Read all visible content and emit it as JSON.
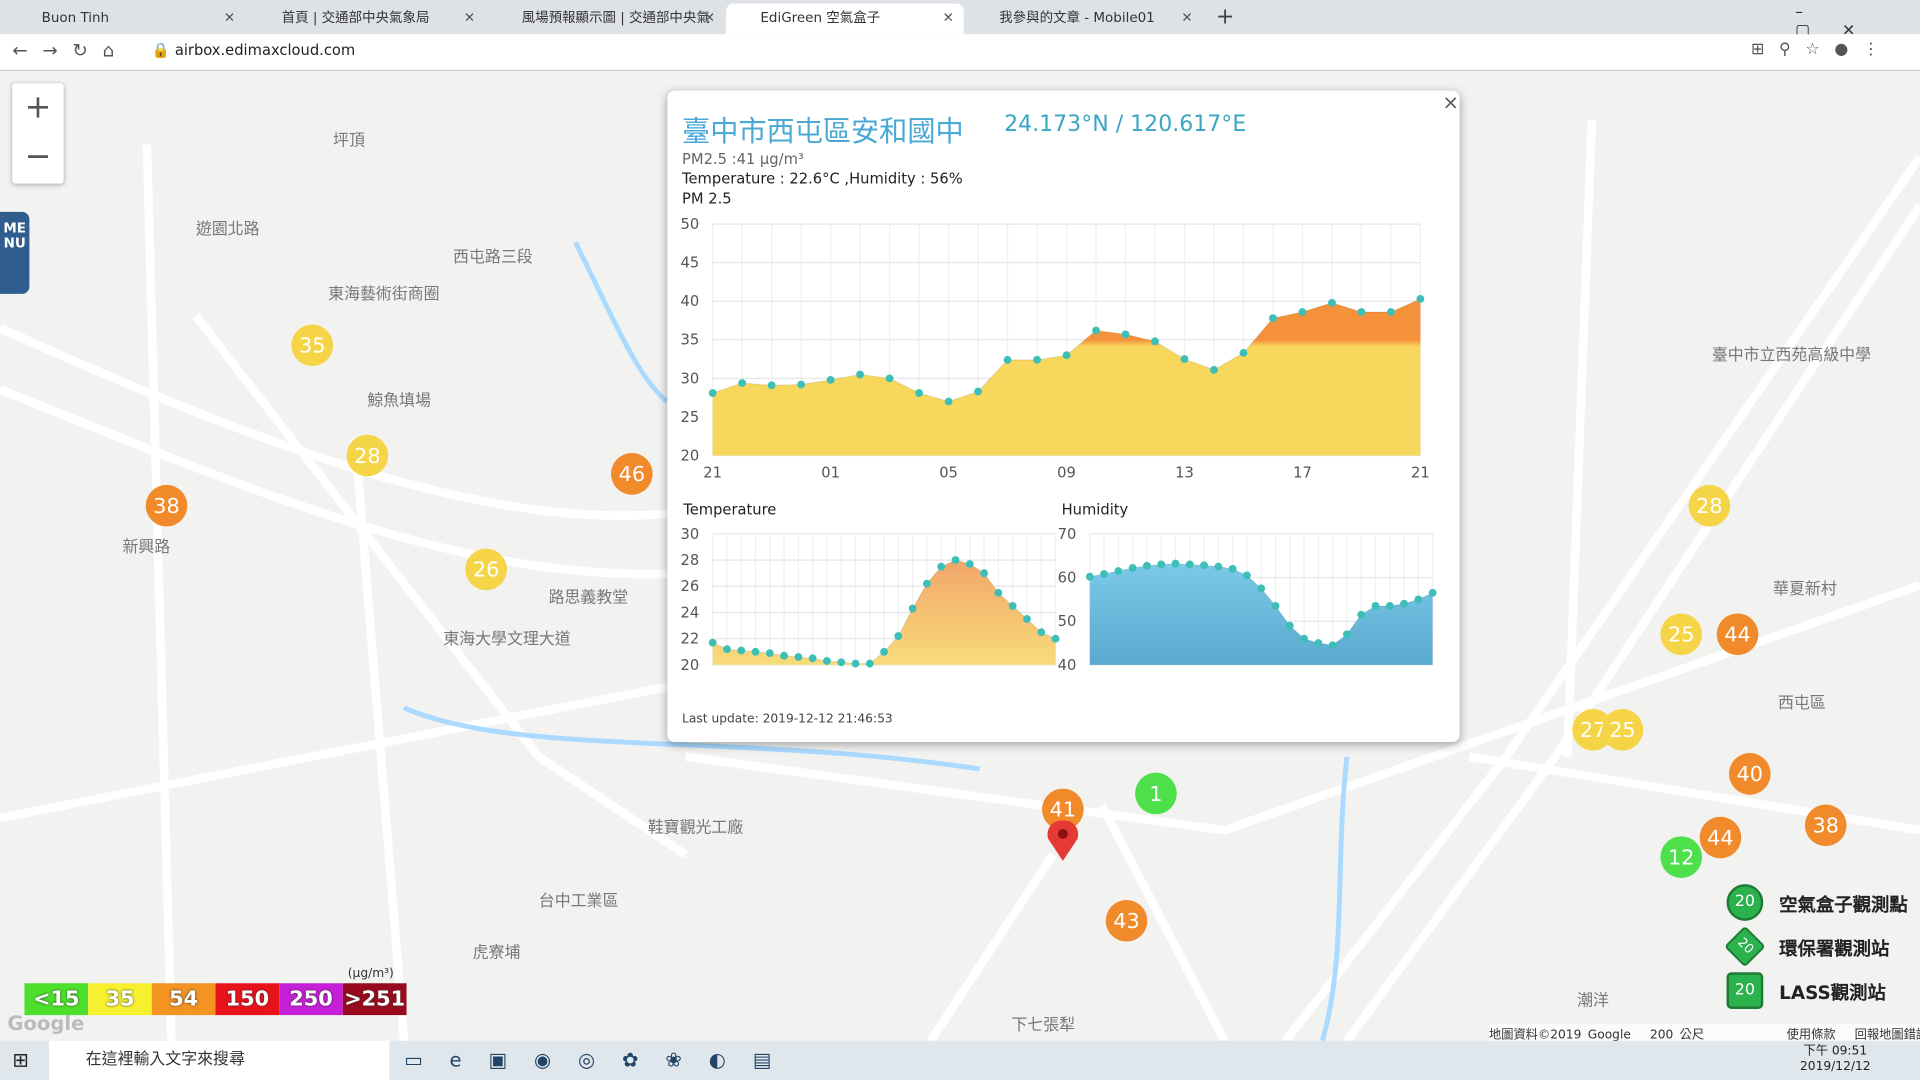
{
  "browser": {
    "tabs": [
      "Buon Tinh",
      "首頁 | 交通部中央氣象局",
      "風場預報顯示圖 | 交通部中央氣",
      "EdiGreen 空氣盒子",
      "我參與的文章 - Mobile01"
    ],
    "url": "airbox.edimaxcloud.com"
  },
  "map": {
    "menu": "MENU",
    "labels": [
      "坪頂",
      "東海藝術街商圈",
      "鯨魚填場",
      "新興路",
      "路思義教堂",
      "東海大學文理大道",
      "台中工業區",
      "虎寮埔",
      "下七張犁",
      "華夏新村",
      "西屯區",
      "潮洋",
      "鞋寶觀光工廠",
      "臺中市立西苑高級中學",
      "遊園北路",
      "西屯路三段"
    ],
    "markers": [
      {
        "value": "35",
        "color": "#f5d547"
      },
      {
        "value": "28",
        "color": "#f5d547"
      },
      {
        "value": "38",
        "color": "#f08a2a"
      },
      {
        "value": "46",
        "color": "#f08a2a"
      },
      {
        "value": "26",
        "color": "#f5d547"
      },
      {
        "value": "41",
        "color": "#f08a2a"
      },
      {
        "value": "1",
        "color": "#4de04a"
      },
      {
        "value": "43",
        "color": "#f08a2a"
      },
      {
        "value": "28",
        "color": "#f5d547"
      },
      {
        "value": "25",
        "color": "#f5d547"
      },
      {
        "value": "44",
        "color": "#f08a2a"
      },
      {
        "value": "27",
        "color": "#f5d547"
      },
      {
        "value": "25",
        "color": "#f5d547"
      },
      {
        "value": "40",
        "color": "#f08a2a"
      },
      {
        "value": "38",
        "color": "#f08a2a"
      },
      {
        "value": "44",
        "color": "#f08a2a"
      },
      {
        "value": "12",
        "color": "#4de04a"
      }
    ],
    "footer": [
      "地圖資料©2019 Google",
      "200 公尺",
      "使用條款",
      "回報地圖錯誤"
    ]
  },
  "legend": {
    "unit": "(μg/m³)",
    "levels": [
      {
        "label": "<15",
        "color": "#4ce02c"
      },
      {
        "label": "35",
        "color": "#f6f02e"
      },
      {
        "label": "54",
        "color": "#f39322"
      },
      {
        "label": "150",
        "color": "#e8121b"
      },
      {
        "label": "250",
        "color": "#c51fd7"
      },
      {
        "label": ">251",
        "color": "#9a0a1f"
      }
    ],
    "stations": [
      {
        "icon": "20",
        "label": "空氣盒子觀測點"
      },
      {
        "icon": "20",
        "label": "環保署觀測站"
      },
      {
        "icon": "20",
        "label": "LASS觀測站"
      }
    ]
  },
  "popup": {
    "title": "臺中市西屯區安和國中",
    "coords": "24.173°N / 120.617°E",
    "lines": [
      "PM2.5 :41 μg/m³",
      "Temperature : 22.6°C ,Humidity : 56%"
    ],
    "last_update": "Last update: 2019-12-12 21:46:53",
    "pm25_chart": {
      "label": "PM 2.5",
      "ylim": [
        20,
        50
      ],
      "yticks": [
        20,
        25,
        30,
        35,
        40,
        45,
        50
      ],
      "xticks": [
        "21",
        "01",
        "05",
        "09",
        "13",
        "17",
        "21"
      ],
      "dot_color": "#3dbfb8",
      "values": [
        28.1,
        29.4,
        29.1,
        29.2,
        29.8,
        30.5,
        30,
        28.1,
        27,
        28.3,
        32.4,
        32.4,
        33,
        36.2,
        35.7,
        34.8,
        32.5,
        31.1,
        33.3,
        37.8,
        38.6,
        39.8,
        38.6,
        38.6,
        40.3
      ]
    },
    "temp_chart": {
      "label": "Temperature",
      "ylim": [
        20,
        30
      ],
      "yticks": [
        20,
        22,
        24,
        26,
        28,
        30
      ],
      "dot_color": "#3dbfb8",
      "values": [
        21.7,
        21.2,
        21.1,
        21.0,
        20.9,
        20.7,
        20.6,
        20.5,
        20.3,
        20.2,
        20.1,
        20.1,
        21.0,
        22.2,
        24.3,
        26.2,
        27.5,
        28.0,
        27.7,
        27.0,
        25.5,
        24.5,
        23.5,
        22.5,
        22.0
      ]
    },
    "hum_chart": {
      "label": "Humidity",
      "ylim": [
        40,
        70
      ],
      "yticks": [
        40,
        50,
        60,
        70
      ],
      "dot_color": "#3dbfb8",
      "values": [
        60.2,
        60.8,
        61.5,
        62.2,
        62.7,
        63.0,
        63.2,
        63.0,
        62.8,
        62.5,
        62.0,
        60.5,
        57.5,
        53.5,
        49.0,
        46.0,
        45.0,
        44.5,
        47.0,
        51.5,
        53.5,
        53.5,
        54.0,
        55.0,
        56.5
      ]
    }
  },
  "taskbar": {
    "search": "在這裡輸入文字來搜尋",
    "time": "下午 09:51",
    "date": "2019/12/12"
  }
}
